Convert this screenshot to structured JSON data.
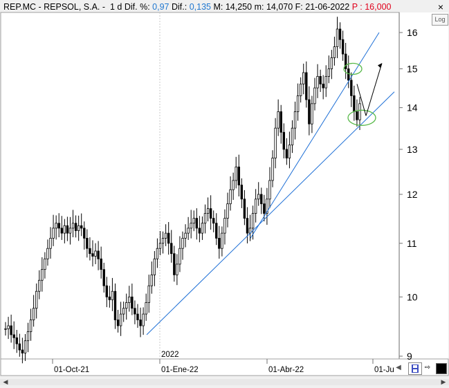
{
  "header": {
    "symbol": "REP.MC - REPSOL, S.A. -",
    "period": "1 d",
    "dif_pct_label": "Dif. %:",
    "dif_pct_value": "0,97",
    "dif_label": "Dif.:",
    "dif_value": "0,135",
    "max_label": "M:",
    "max_value": "14,250",
    "min_label": "m:",
    "min_value": "14,070",
    "date_label": "F:",
    "date_value": "21-06-2022",
    "target_label": "P :",
    "target_value": "16,000"
  },
  "buttons": {
    "close": "×",
    "log": "Log"
  },
  "colors": {
    "accent_blue": "#1f77d0",
    "accent_red": "#e0001b",
    "trendline": "#1d6fd6",
    "ellipse": "#56b847",
    "candle": "#000000"
  },
  "chart_data": {
    "type": "candlestick",
    "ylim": [
      9,
      16.5
    ],
    "yscale": "log",
    "y_ticks": [
      9,
      10,
      11,
      12,
      13,
      14,
      15,
      16
    ],
    "x_ticks": [
      "01-Oct-21",
      "01-Ene-22",
      "01-Abr-22",
      "01-Ju"
    ],
    "year_marker": "2022",
    "close_series": [
      9.45,
      9.5,
      9.35,
      9.3,
      9.2,
      9.1,
      9.05,
      9.25,
      9.4,
      9.6,
      9.8,
      10.1,
      10.3,
      10.5,
      10.7,
      10.9,
      11.1,
      11.3,
      11.4,
      11.3,
      11.2,
      11.35,
      11.2,
      11.3,
      11.4,
      11.25,
      11.35,
      11.3,
      11.1,
      10.9,
      10.8,
      10.75,
      10.85,
      10.7,
      10.5,
      10.2,
      10.0,
      9.95,
      10.1,
      9.6,
      9.5,
      9.7,
      9.8,
      9.9,
      10.0,
      9.8,
      9.7,
      9.6,
      9.5,
      9.7,
      9.9,
      10.2,
      10.4,
      10.7,
      10.9,
      11.0,
      11.1,
      11.2,
      11.0,
      10.8,
      10.4,
      10.6,
      10.9,
      11.1,
      11.2,
      11.3,
      11.4,
      11.5,
      11.3,
      11.2,
      11.4,
      11.6,
      11.7,
      11.5,
      11.4,
      11.1,
      10.9,
      11.2,
      11.5,
      11.8,
      12.1,
      12.3,
      12.6,
      12.2,
      11.9,
      11.5,
      11.2,
      11.3,
      11.6,
      11.9,
      12.0,
      11.8,
      11.6,
      11.9,
      12.3,
      12.8,
      13.5,
      13.9,
      13.4,
      13.0,
      12.8,
      13.1,
      13.5,
      13.9,
      14.3,
      14.6,
      14.9,
      14.2,
      13.6,
      14.1,
      14.5,
      14.8,
      14.6,
      14.5,
      14.8,
      15.0,
      15.3,
      15.6,
      16.1,
      15.8,
      15.4,
      15.0,
      14.7,
      14.3,
      13.9,
      13.7,
      14.1
    ],
    "annotations": [
      {
        "type": "trendline",
        "from": [
          9.35,
          "start"
        ],
        "to": [
          14.4,
          "end"
        ]
      },
      {
        "type": "trendline",
        "from": [
          11.1,
          "mid"
        ],
        "to": [
          16.0,
          "end"
        ]
      },
      {
        "type": "ellipse",
        "center": [
          15.0,
          "upper"
        ]
      },
      {
        "type": "ellipse",
        "center": [
          13.7,
          "lower"
        ]
      },
      {
        "type": "arrow",
        "from": [
          13.7,
          "lower"
        ],
        "to": [
          15.2,
          "target"
        ]
      }
    ]
  }
}
